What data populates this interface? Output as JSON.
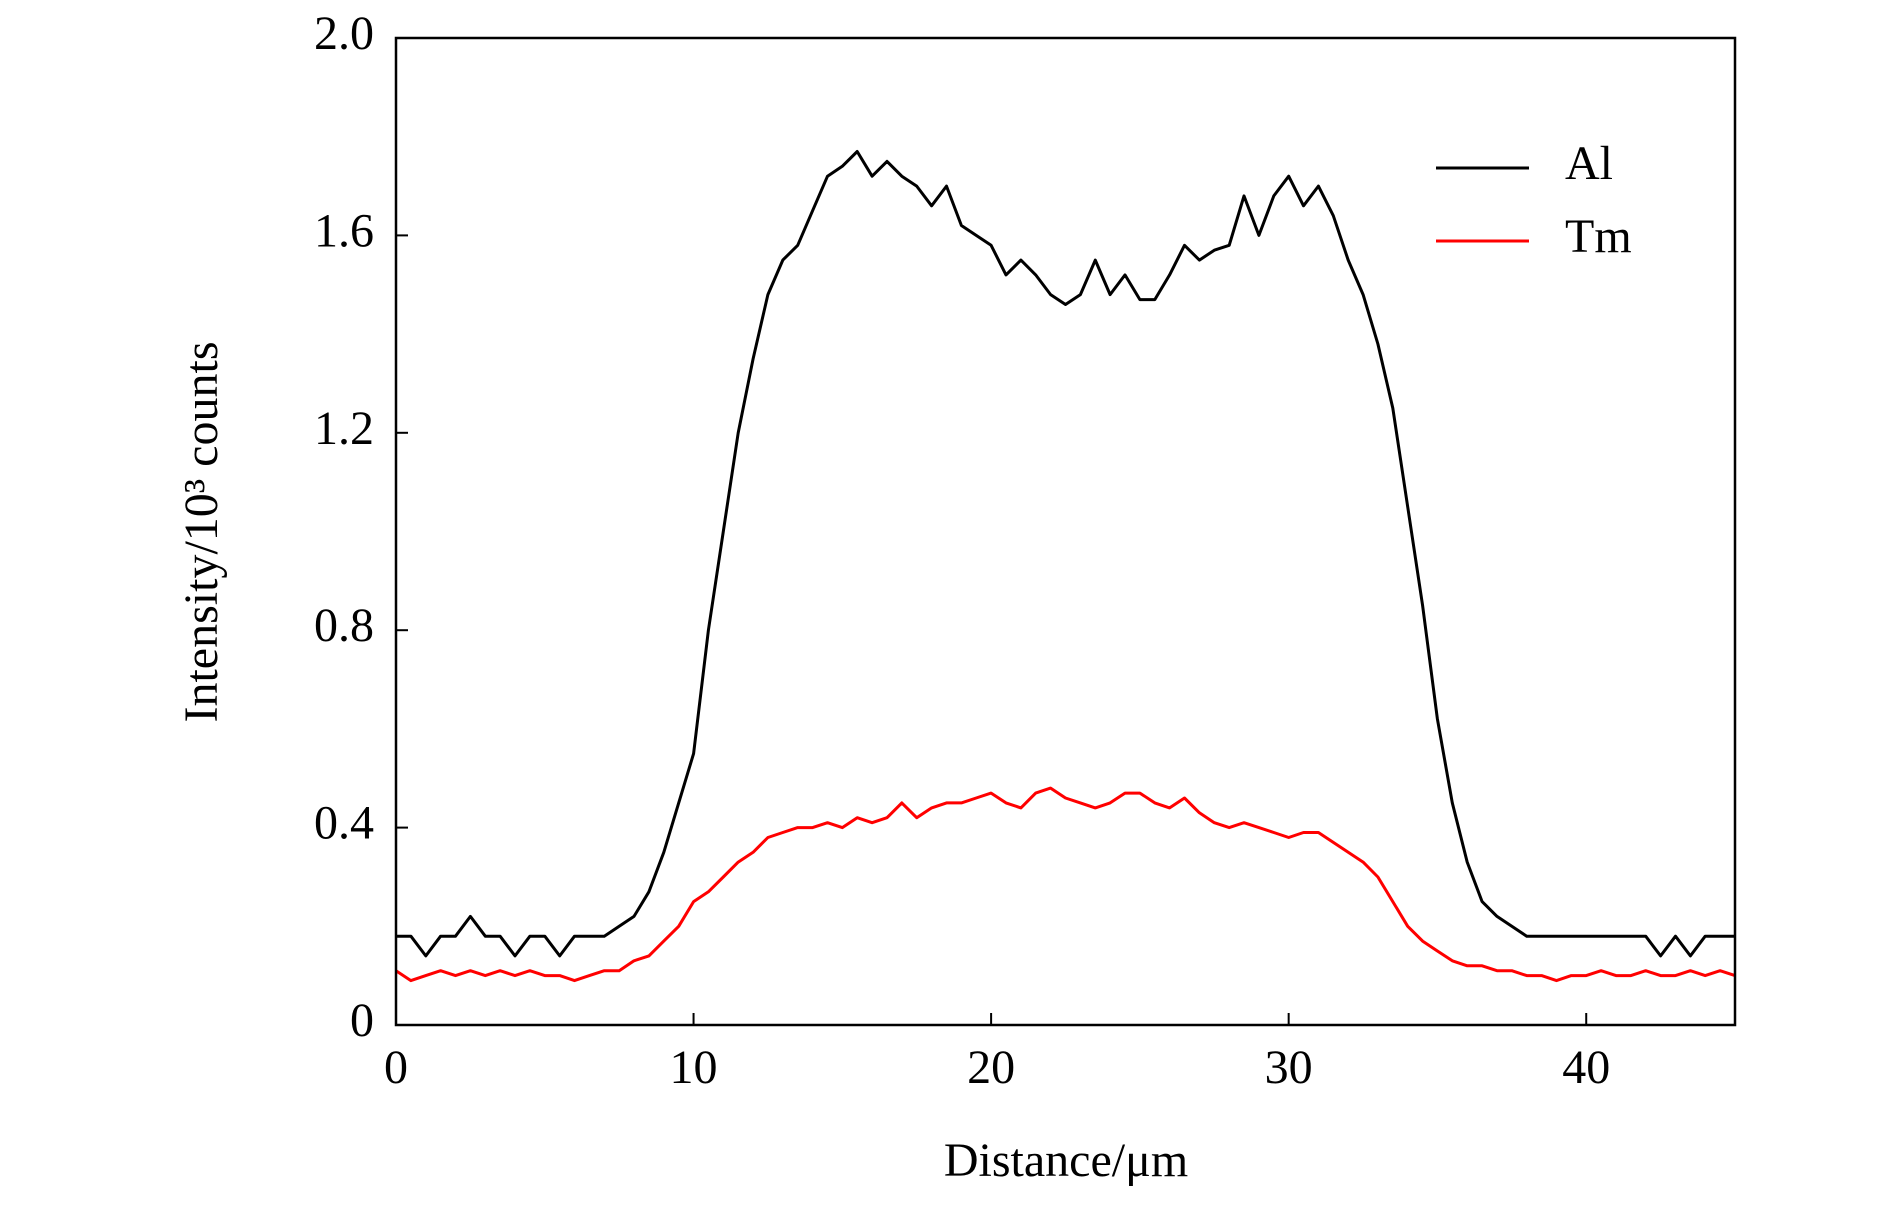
{
  "chart_data": {
    "type": "line",
    "xlabel": "Distance/μm",
    "ylabel": "Intensity/10³ counts",
    "x": [
      0,
      0.5,
      1,
      1.5,
      2,
      2.5,
      3,
      3.5,
      4,
      4.5,
      5,
      5.5,
      6,
      6.5,
      7,
      7.5,
      8,
      8.5,
      9,
      9.5,
      10,
      10.5,
      11,
      11.5,
      12,
      12.5,
      13,
      13.5,
      14,
      14.5,
      15,
      15.5,
      16,
      16.5,
      17,
      17.5,
      18,
      18.5,
      19,
      19.5,
      20,
      20.5,
      21,
      21.5,
      22,
      22.5,
      23,
      23.5,
      24,
      24.5,
      25,
      25.5,
      26,
      26.5,
      27,
      27.5,
      28,
      28.5,
      29,
      29.5,
      30,
      30.5,
      31,
      31.5,
      32,
      32.5,
      33,
      33.5,
      34,
      34.5,
      35,
      35.5,
      36,
      36.5,
      37,
      37.5,
      38,
      38.5,
      39,
      39.5,
      40,
      40.5,
      41,
      41.5,
      42,
      42.5,
      43,
      43.5,
      44,
      44.5,
      45
    ],
    "series": [
      {
        "name": "Al",
        "color": "#000000",
        "values": [
          0.18,
          0.18,
          0.14,
          0.18,
          0.18,
          0.22,
          0.18,
          0.18,
          0.14,
          0.18,
          0.18,
          0.14,
          0.18,
          0.18,
          0.18,
          0.2,
          0.22,
          0.27,
          0.35,
          0.45,
          0.55,
          0.8,
          1.0,
          1.2,
          1.35,
          1.48,
          1.55,
          1.58,
          1.65,
          1.72,
          1.74,
          1.77,
          1.72,
          1.75,
          1.72,
          1.7,
          1.66,
          1.7,
          1.62,
          1.6,
          1.58,
          1.52,
          1.55,
          1.52,
          1.48,
          1.46,
          1.48,
          1.55,
          1.48,
          1.52,
          1.47,
          1.47,
          1.52,
          1.58,
          1.55,
          1.57,
          1.58,
          1.68,
          1.6,
          1.68,
          1.72,
          1.66,
          1.7,
          1.64,
          1.55,
          1.48,
          1.38,
          1.25,
          1.05,
          0.85,
          0.62,
          0.45,
          0.33,
          0.25,
          0.22,
          0.2,
          0.18,
          0.18,
          0.18,
          0.18,
          0.18,
          0.18,
          0.18,
          0.18,
          0.18,
          0.14,
          0.18,
          0.14,
          0.18,
          0.18,
          0.18
        ]
      },
      {
        "name": "Tm",
        "color": "#ff0000",
        "values": [
          0.11,
          0.09,
          0.1,
          0.11,
          0.1,
          0.11,
          0.1,
          0.11,
          0.1,
          0.11,
          0.1,
          0.1,
          0.09,
          0.1,
          0.11,
          0.11,
          0.13,
          0.14,
          0.17,
          0.2,
          0.25,
          0.27,
          0.3,
          0.33,
          0.35,
          0.38,
          0.39,
          0.4,
          0.4,
          0.41,
          0.4,
          0.42,
          0.41,
          0.42,
          0.45,
          0.42,
          0.44,
          0.45,
          0.45,
          0.46,
          0.47,
          0.45,
          0.44,
          0.47,
          0.48,
          0.46,
          0.45,
          0.44,
          0.45,
          0.47,
          0.47,
          0.45,
          0.44,
          0.46,
          0.43,
          0.41,
          0.4,
          0.41,
          0.4,
          0.39,
          0.38,
          0.39,
          0.39,
          0.37,
          0.35,
          0.33,
          0.3,
          0.25,
          0.2,
          0.17,
          0.15,
          0.13,
          0.12,
          0.12,
          0.11,
          0.11,
          0.1,
          0.1,
          0.09,
          0.1,
          0.1,
          0.11,
          0.1,
          0.1,
          0.11,
          0.1,
          0.1,
          0.11,
          0.1,
          0.11,
          0.1
        ]
      }
    ],
    "xlim": [
      0,
      45
    ],
    "xticks": [
      0,
      10,
      20,
      30,
      40
    ],
    "ylim": [
      0,
      2
    ],
    "yticks": [
      0,
      0.4,
      0.8,
      1.2,
      1.6,
      {
        "value": 2,
        "label": "2.0"
      }
    ],
    "legend": "upper right"
  }
}
